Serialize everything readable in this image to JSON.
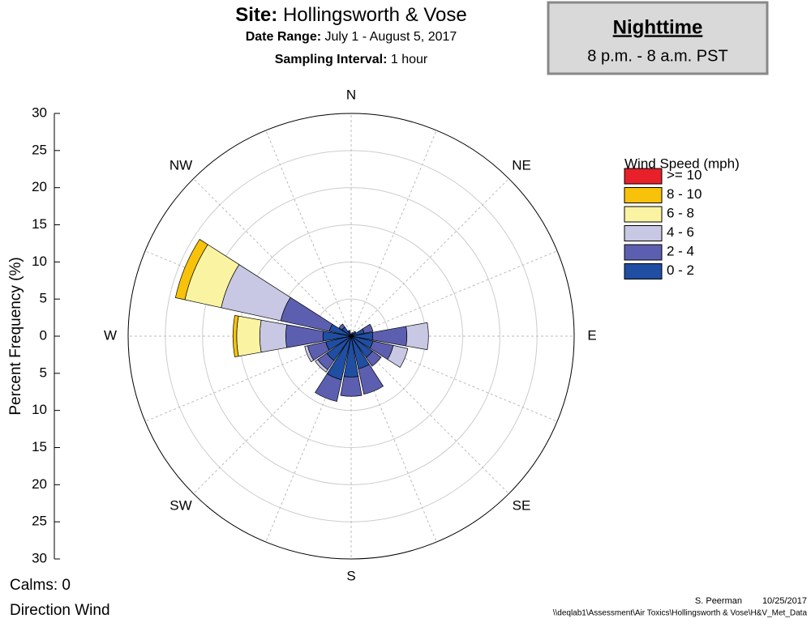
{
  "chart_data": {
    "type": "windrose",
    "header": [
      {
        "label": "Site:",
        "text": "Hollingsworth & Vose"
      },
      {
        "label": "Date Range:",
        "text": "July 1 - August 5, 2017"
      },
      {
        "label": "Sampling Interval:",
        "text": "1 hour"
      }
    ],
    "period_box": {
      "title": "Nighttime",
      "subtitle": "8 p.m. - 8 a.m. PST"
    },
    "ylabel": "Percent Frequency (%)",
    "ylim": [
      -30,
      30
    ],
    "yticks": [
      {
        "value": -30,
        "label": "30"
      },
      {
        "value": -25,
        "label": "25"
      },
      {
        "value": -20,
        "label": "20"
      },
      {
        "value": -15,
        "label": "15"
      },
      {
        "value": -10,
        "label": "10"
      },
      {
        "value": -5,
        "label": "5"
      },
      0,
      5,
      10,
      15,
      20,
      25,
      30
    ],
    "categories": [
      "N",
      null,
      "NE",
      null,
      "E",
      null,
      "SE",
      null,
      "S",
      null,
      "SW",
      null,
      "W",
      null,
      "NW",
      null
    ],
    "legend_title": "Wind Speed (mph)",
    "series": [
      {
        "name": "0 - 2",
        "color": "#1f4ea3",
        "values": [
          0.3,
          0.5,
          0.8,
          1.8,
          2.9,
          3,
          3.5,
          4.5,
          5.5,
          6,
          4,
          3.5,
          3.8,
          3,
          1.5,
          0.8
        ]
      },
      {
        "name": "2 - 4",
        "color": "#5c5fb0",
        "values": [
          0,
          0,
          0,
          1.2,
          4.6,
          2.8,
          1.4,
          3.5,
          2.6,
          3,
          1.5,
          2.5,
          5,
          6.7,
          0.5,
          0
        ]
      },
      {
        "name": "4 - 6",
        "color": "#c8c8e4",
        "values": [
          0,
          0,
          0,
          0,
          2.9,
          2,
          0,
          0,
          0,
          0,
          0.4,
          0.4,
          3.5,
          8.2,
          0,
          0
        ]
      },
      {
        "name": "6 - 8",
        "color": "#faf3a2",
        "values": [
          0,
          0,
          0,
          0,
          0,
          0,
          0,
          0,
          0,
          0,
          0,
          0,
          3.1,
          5,
          0,
          0
        ]
      },
      {
        "name": "8 - 10",
        "color": "#f9c20a",
        "values": [
          0,
          0,
          0,
          0,
          0,
          0,
          0,
          0,
          0,
          0,
          0,
          0,
          0.5,
          1.3,
          0,
          0
        ]
      },
      {
        "name": ">= 10",
        "color": "#e8202a",
        "values": [
          0,
          0,
          0,
          0,
          0,
          0,
          0,
          0,
          0,
          0,
          0,
          0,
          0,
          0,
          0,
          0
        ]
      }
    ],
    "grid": true,
    "notes": [
      "Calms: 0",
      "Direction Wind"
    ],
    "author": "S. Peerman",
    "date": "10/25/2017",
    "file_path": "\\\\deqlab1\\Assessment\\Air Toxics\\Hollingsworth & Vose\\H&V_Met_Data"
  }
}
